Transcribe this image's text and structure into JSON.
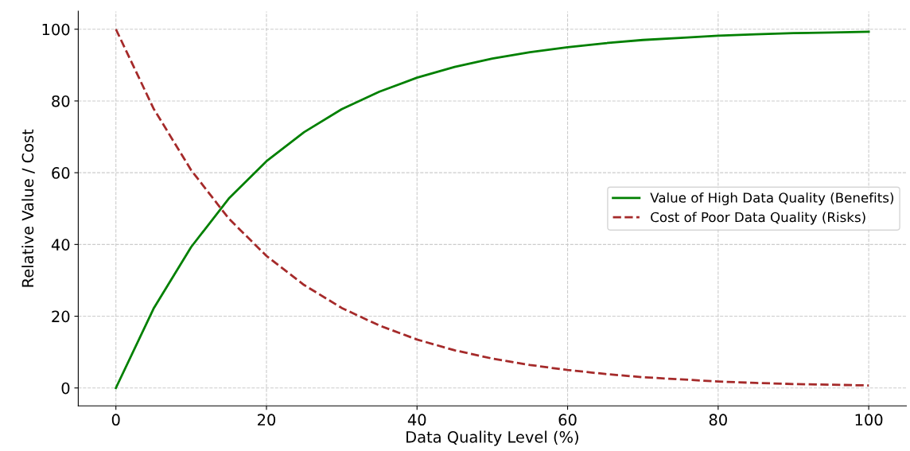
{
  "chart_data": {
    "type": "line",
    "xlabel": "Data Quality Level (%)",
    "ylabel": "Relative Value / Cost",
    "x": [
      0,
      5,
      10,
      15,
      20,
      25,
      30,
      35,
      40,
      45,
      50,
      55,
      60,
      65,
      70,
      75,
      80,
      85,
      90,
      95,
      100
    ],
    "series": [
      {
        "name": "Value of High Data Quality (Benefits)",
        "color": "#008000",
        "line_style": "solid",
        "values": [
          0,
          22.1,
          39.3,
          52.8,
          63.2,
          71.3,
          77.7,
          82.6,
          86.5,
          89.5,
          91.8,
          93.6,
          95.0,
          96.1,
          97.0,
          97.6,
          98.2,
          98.6,
          98.9,
          99.1,
          99.3
        ]
      },
      {
        "name": "Cost of Poor Data Quality (Risks)",
        "color": "#a52a2a",
        "line_style": "dashed",
        "values": [
          100,
          77.9,
          60.7,
          47.2,
          36.8,
          28.7,
          22.3,
          17.4,
          13.5,
          10.5,
          8.2,
          6.4,
          5.0,
          3.9,
          3.0,
          2.4,
          1.8,
          1.4,
          1.1,
          0.9,
          0.7
        ]
      }
    ],
    "xlim": [
      -5,
      105
    ],
    "ylim": [
      -5,
      105
    ],
    "xticks": [
      0,
      20,
      40,
      60,
      80,
      100
    ],
    "yticks": [
      0,
      20,
      40,
      60,
      80,
      100
    ],
    "grid": true,
    "legend": "right",
    "marker": "none"
  }
}
